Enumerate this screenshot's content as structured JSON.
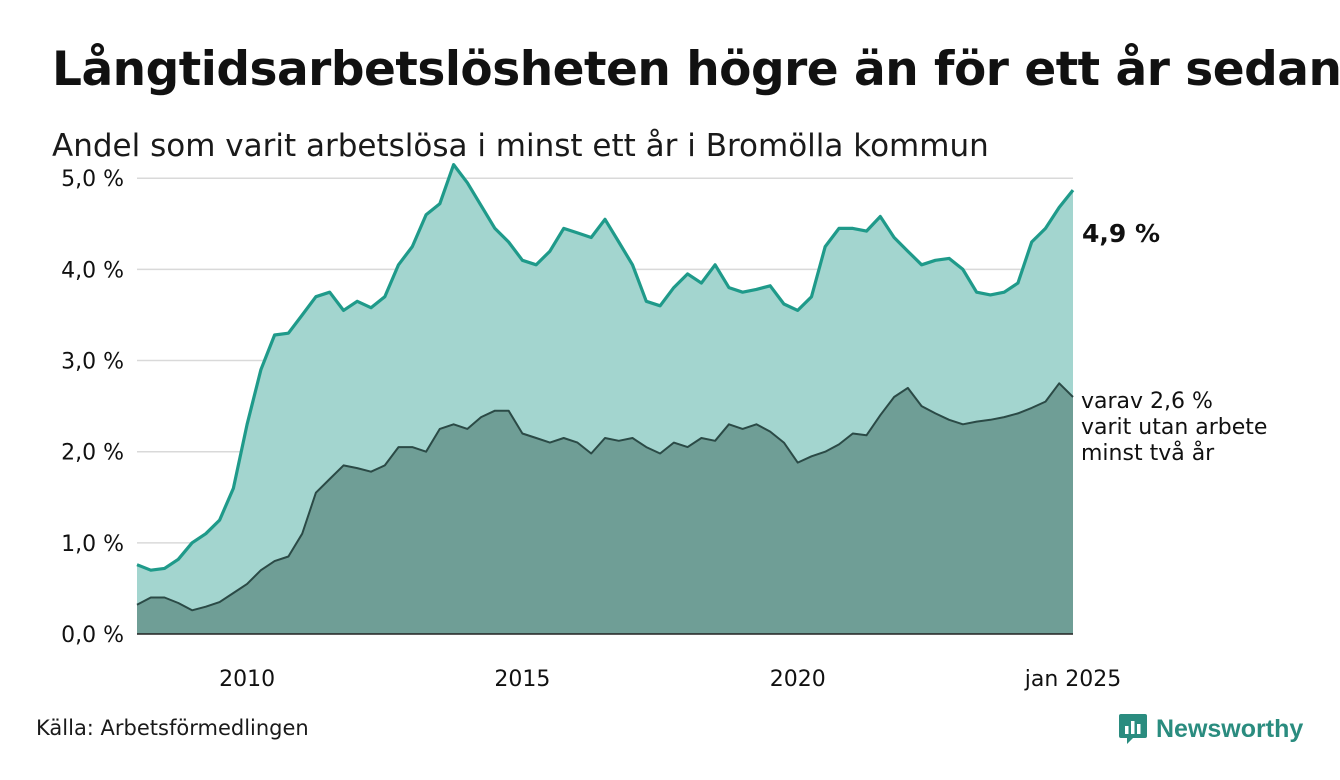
{
  "title": "Långtidsarbetslösheten högre än för ett år sedan",
  "subtitle": "Andel som varit arbetslösa i minst ett år i Bromölla kommun",
  "source": "Källa: Arbetsförmedlingen",
  "brand": "Newsworthy",
  "colors": {
    "area_1yr": "#a3d5cf",
    "line_1yr": "#1f9a8a",
    "area_2yr": "#6f9e96",
    "line_2yr": "#2b4a46",
    "grid": "#d9d9d9",
    "brand": "#2a8c7f"
  },
  "labels": {
    "end_value": "4,9 %",
    "annot_line1": "varav 2,6 %",
    "annot_line2": "varit utan arbete",
    "annot_line3": "minst två år"
  },
  "chart_data": {
    "type": "area",
    "y_ticks": [
      0,
      1,
      2,
      3,
      4,
      5
    ],
    "y_tick_labels": [
      "0,0 %",
      "1,0 %",
      "2,0 %",
      "3,0 %",
      "4,0 %",
      "5,0 %"
    ],
    "ylim": [
      0,
      5.2
    ],
    "x_ticks": [
      2010,
      2015,
      2020,
      2025.0
    ],
    "x_tick_labels": [
      "2010",
      "2015",
      "2020",
      "jan 2025"
    ],
    "xlim": [
      2008.0,
      2025.0
    ],
    "series": [
      {
        "key": "1yr",
        "points": [
          [
            2008.0,
            0.76
          ],
          [
            2008.25,
            0.7
          ],
          [
            2008.5,
            0.72
          ],
          [
            2008.75,
            0.82
          ],
          [
            2009.0,
            1.0
          ],
          [
            2009.25,
            1.1
          ],
          [
            2009.5,
            1.25
          ],
          [
            2009.75,
            1.6
          ],
          [
            2010.0,
            2.3
          ],
          [
            2010.25,
            2.9
          ],
          [
            2010.5,
            3.28
          ],
          [
            2010.75,
            3.3
          ],
          [
            2011.0,
            3.5
          ],
          [
            2011.25,
            3.7
          ],
          [
            2011.5,
            3.75
          ],
          [
            2011.75,
            3.55
          ],
          [
            2012.0,
            3.65
          ],
          [
            2012.25,
            3.58
          ],
          [
            2012.5,
            3.7
          ],
          [
            2012.75,
            4.05
          ],
          [
            2013.0,
            4.25
          ],
          [
            2013.25,
            4.6
          ],
          [
            2013.5,
            4.72
          ],
          [
            2013.75,
            5.15
          ],
          [
            2014.0,
            4.95
          ],
          [
            2014.25,
            4.7
          ],
          [
            2014.5,
            4.45
          ],
          [
            2014.75,
            4.3
          ],
          [
            2015.0,
            4.1
          ],
          [
            2015.25,
            4.05
          ],
          [
            2015.5,
            4.2
          ],
          [
            2015.75,
            4.45
          ],
          [
            2016.0,
            4.4
          ],
          [
            2016.25,
            4.35
          ],
          [
            2016.5,
            4.55
          ],
          [
            2016.75,
            4.3
          ],
          [
            2017.0,
            4.05
          ],
          [
            2017.25,
            3.65
          ],
          [
            2017.5,
            3.6
          ],
          [
            2017.75,
            3.8
          ],
          [
            2018.0,
            3.95
          ],
          [
            2018.25,
            3.85
          ],
          [
            2018.5,
            4.05
          ],
          [
            2018.75,
            3.8
          ],
          [
            2019.0,
            3.75
          ],
          [
            2019.25,
            3.78
          ],
          [
            2019.5,
            3.82
          ],
          [
            2019.75,
            3.62
          ],
          [
            2020.0,
            3.55
          ],
          [
            2020.25,
            3.7
          ],
          [
            2020.5,
            4.25
          ],
          [
            2020.75,
            4.45
          ],
          [
            2021.0,
            4.45
          ],
          [
            2021.25,
            4.42
          ],
          [
            2021.5,
            4.58
          ],
          [
            2021.75,
            4.35
          ],
          [
            2022.0,
            4.2
          ],
          [
            2022.25,
            4.05
          ],
          [
            2022.5,
            4.1
          ],
          [
            2022.75,
            4.12
          ],
          [
            2023.0,
            4.0
          ],
          [
            2023.25,
            3.75
          ],
          [
            2023.5,
            3.72
          ],
          [
            2023.75,
            3.75
          ],
          [
            2024.0,
            3.85
          ],
          [
            2024.25,
            4.3
          ],
          [
            2024.5,
            4.45
          ],
          [
            2024.75,
            4.68
          ],
          [
            2025.0,
            4.87
          ]
        ]
      },
      {
        "key": "2yr",
        "points": [
          [
            2008.0,
            0.32
          ],
          [
            2008.25,
            0.4
          ],
          [
            2008.5,
            0.4
          ],
          [
            2008.75,
            0.34
          ],
          [
            2009.0,
            0.26
          ],
          [
            2009.25,
            0.3
          ],
          [
            2009.5,
            0.35
          ],
          [
            2009.75,
            0.45
          ],
          [
            2010.0,
            0.55
          ],
          [
            2010.25,
            0.7
          ],
          [
            2010.5,
            0.8
          ],
          [
            2010.75,
            0.85
          ],
          [
            2011.0,
            1.1
          ],
          [
            2011.25,
            1.55
          ],
          [
            2011.5,
            1.7
          ],
          [
            2011.75,
            1.85
          ],
          [
            2012.0,
            1.82
          ],
          [
            2012.25,
            1.78
          ],
          [
            2012.5,
            1.85
          ],
          [
            2012.75,
            2.05
          ],
          [
            2013.0,
            2.05
          ],
          [
            2013.25,
            2.0
          ],
          [
            2013.5,
            2.25
          ],
          [
            2013.75,
            2.3
          ],
          [
            2014.0,
            2.25
          ],
          [
            2014.25,
            2.38
          ],
          [
            2014.5,
            2.45
          ],
          [
            2014.75,
            2.45
          ],
          [
            2015.0,
            2.2
          ],
          [
            2015.25,
            2.15
          ],
          [
            2015.5,
            2.1
          ],
          [
            2015.75,
            2.15
          ],
          [
            2016.0,
            2.1
          ],
          [
            2016.25,
            1.98
          ],
          [
            2016.5,
            2.15
          ],
          [
            2016.75,
            2.12
          ],
          [
            2017.0,
            2.15
          ],
          [
            2017.25,
            2.05
          ],
          [
            2017.5,
            1.98
          ],
          [
            2017.75,
            2.1
          ],
          [
            2018.0,
            2.05
          ],
          [
            2018.25,
            2.15
          ],
          [
            2018.5,
            2.12
          ],
          [
            2018.75,
            2.3
          ],
          [
            2019.0,
            2.25
          ],
          [
            2019.25,
            2.3
          ],
          [
            2019.5,
            2.22
          ],
          [
            2019.75,
            2.1
          ],
          [
            2020.0,
            1.88
          ],
          [
            2020.25,
            1.95
          ],
          [
            2020.5,
            2.0
          ],
          [
            2020.75,
            2.08
          ],
          [
            2021.0,
            2.2
          ],
          [
            2021.25,
            2.18
          ],
          [
            2021.5,
            2.4
          ],
          [
            2021.75,
            2.6
          ],
          [
            2022.0,
            2.7
          ],
          [
            2022.25,
            2.5
          ],
          [
            2022.5,
            2.42
          ],
          [
            2022.75,
            2.35
          ],
          [
            2023.0,
            2.3
          ],
          [
            2023.25,
            2.33
          ],
          [
            2023.5,
            2.35
          ],
          [
            2023.75,
            2.38
          ],
          [
            2024.0,
            2.42
          ],
          [
            2024.25,
            2.48
          ],
          [
            2024.5,
            2.55
          ],
          [
            2024.75,
            2.75
          ],
          [
            2025.0,
            2.6
          ]
        ]
      }
    ]
  }
}
